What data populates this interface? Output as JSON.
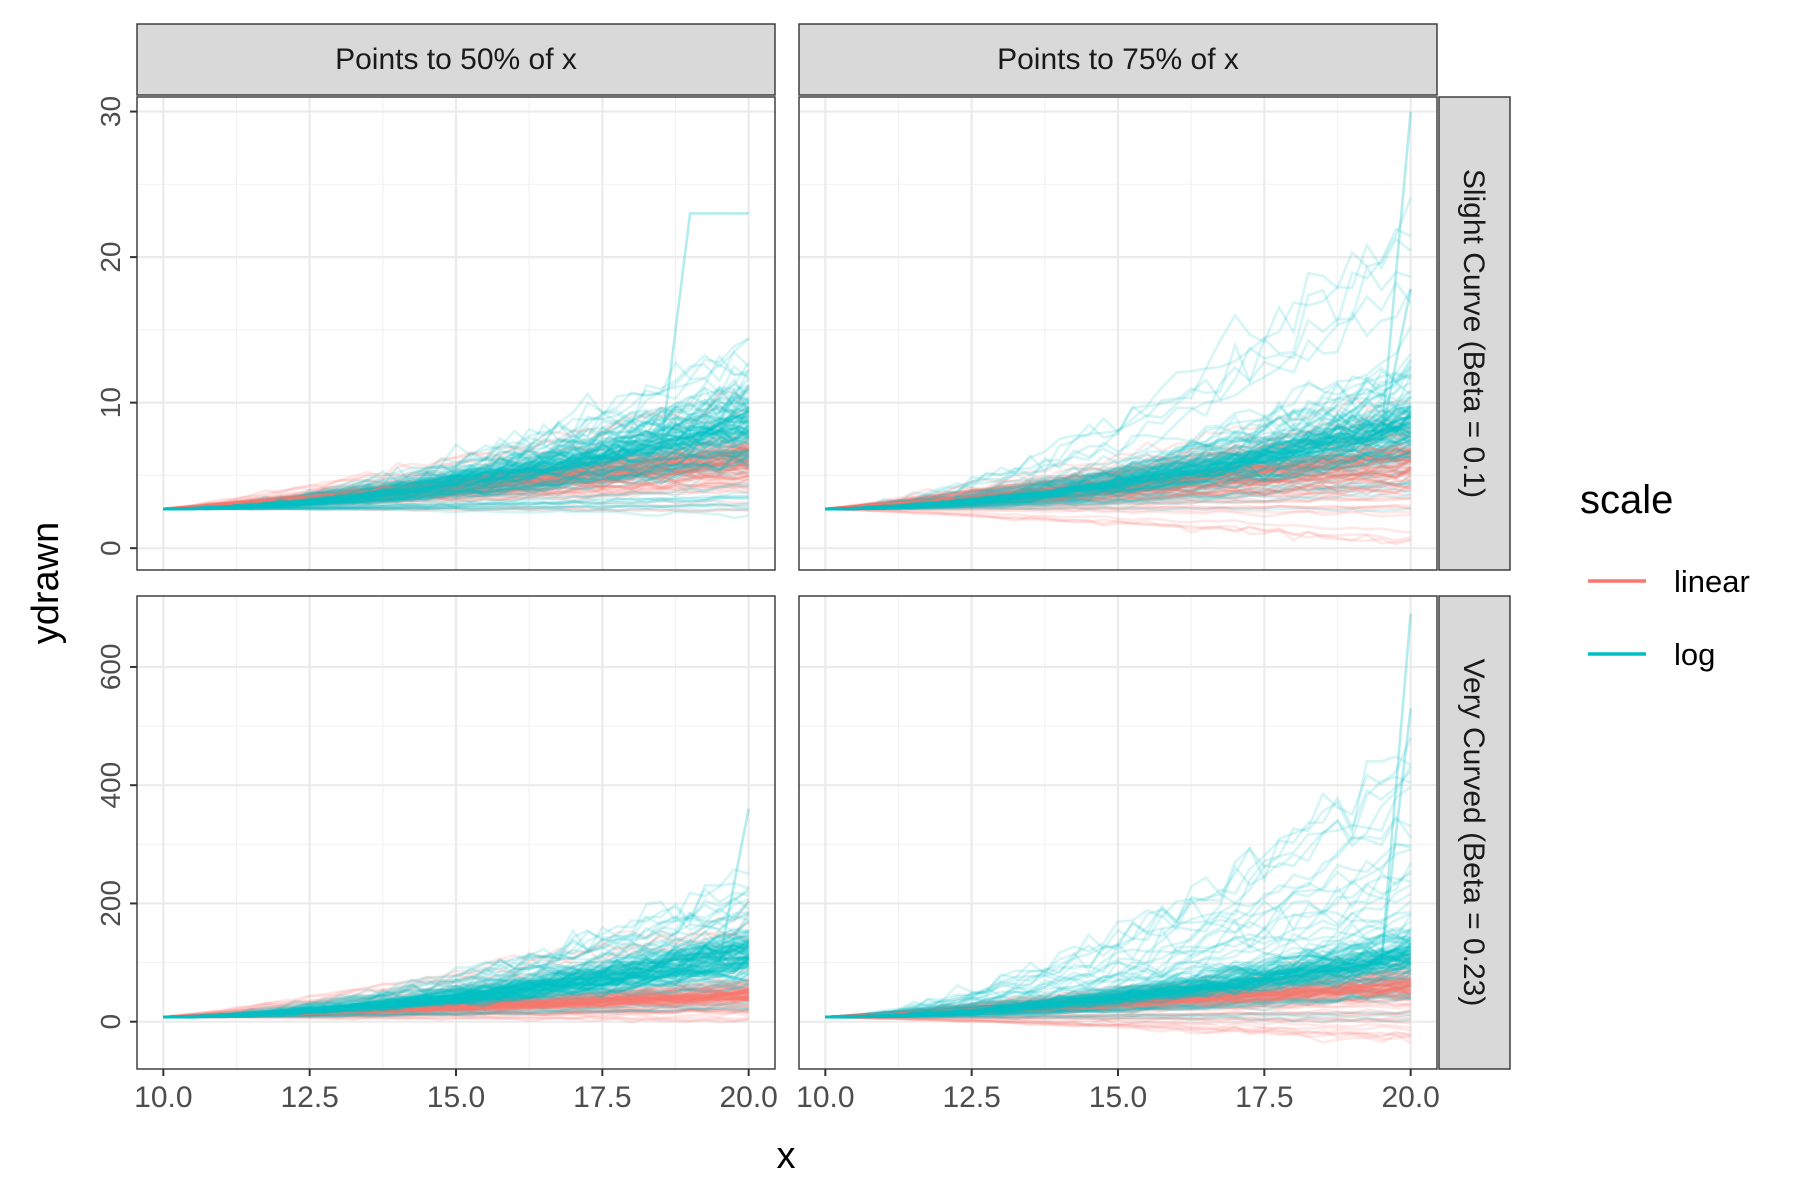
{
  "chart_data": {
    "type": "line",
    "xlabel": "x",
    "ylabel": "ydrawn",
    "x_range": [
      10,
      20
    ],
    "x_ticks": [
      "10.0",
      "12.5",
      "15.0",
      "17.5",
      "20.0"
    ],
    "x_tick_values": [
      10,
      12.5,
      15,
      17.5,
      20
    ],
    "column_facets": [
      "Points to 50% of x",
      "Points to 75% of x"
    ],
    "row_facets": [
      "Slight Curve (Beta = 0.1)",
      "Very Curved (Beta = 0.23)"
    ],
    "rows": [
      {
        "ylim": [
          -1.5,
          31
        ],
        "y_ticks": [
          "0",
          "10",
          "20",
          "30"
        ],
        "y_tick_values": [
          0,
          10,
          20,
          30
        ],
        "start_y": 2.7
      },
      {
        "ylim": [
          -80,
          720
        ],
        "y_ticks": [
          "0",
          "200",
          "400",
          "600"
        ],
        "y_tick_values": [
          0,
          200,
          400,
          600
        ],
        "start_y": 8
      }
    ],
    "legend": {
      "title": "scale",
      "position": "right",
      "entries": [
        {
          "name": "linear",
          "color": "#F8766D"
        },
        {
          "name": "log",
          "color": "#00BFC4"
        }
      ]
    },
    "grid": true,
    "series_per_panel": "many semi-transparent simulated trajectories per scale",
    "panels": [
      {
        "column": "Points to 50% of x",
        "row": "Slight Curve (Beta = 0.1)",
        "linear": {
          "end_range": [
            2.5,
            15
          ],
          "typical_end": 6
        },
        "log": {
          "end_range": [
            1.8,
            18.5
          ],
          "typical_end": 8,
          "outliers": [
            {
              "x": 19,
              "y": 23
            }
          ]
        }
      },
      {
        "column": "Points to 75% of x",
        "row": "Slight Curve (Beta = 0.1)",
        "linear": {
          "end_range": [
            0.3,
            14
          ],
          "typical_end": 6
        },
        "log": {
          "end_range": [
            2,
            30
          ],
          "typical_end": 8,
          "outliers": [
            {
              "x": 20,
              "y": 30
            },
            {
              "x": 20,
              "y": 17.8
            }
          ]
        }
      },
      {
        "column": "Points to 50% of x",
        "row": "Very Curved (Beta = 0.23)",
        "linear": {
          "end_range": [
            0,
            240
          ],
          "typical_end": 45
        },
        "log": {
          "end_range": [
            0,
            360
          ],
          "typical_end": 110,
          "outliers": [
            {
              "x": 20,
              "y": 360
            }
          ]
        }
      },
      {
        "column": "Points to 75% of x",
        "row": "Very Curved (Beta = 0.23)",
        "linear": {
          "end_range": [
            -40,
            130
          ],
          "typical_end": 60
        },
        "log": {
          "end_range": [
            0,
            690
          ],
          "typical_end": 110,
          "outliers": [
            {
              "x": 20,
              "y": 690
            },
            {
              "x": 20,
              "y": 530
            }
          ]
        }
      }
    ]
  }
}
